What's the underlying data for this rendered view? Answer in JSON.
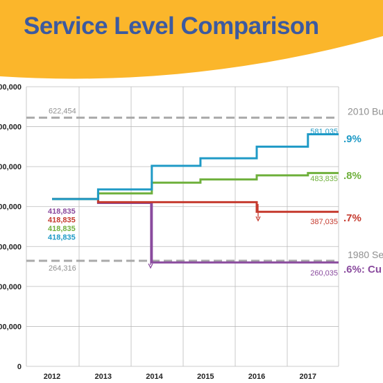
{
  "colors": {
    "banner": "#fbb62b",
    "title": "#3c5aa0",
    "grid": "#bbbbbb",
    "reference": "#a9a9a9",
    "reference_label": "#8f8f8f",
    "teal": "#1f9ac6",
    "green": "#6fb03c",
    "red": "#c53a2e",
    "purple": "#8a4b9e"
  },
  "chart_data": {
    "type": "line",
    "step": true,
    "title": "Service Level Comparison",
    "xlabel": "",
    "ylabel": "",
    "x_ticks": [
      "2012",
      "2013",
      "2014",
      "2015",
      "2016",
      "2017"
    ],
    "y_ticks": [
      {
        "value": 0,
        "label": "0"
      },
      {
        "value": 100000,
        "label": "00,000"
      },
      {
        "value": 200000,
        "label": "00,000"
      },
      {
        "value": 300000,
        "label": "00,000"
      },
      {
        "value": 400000,
        "label": "00,000"
      },
      {
        "value": 500000,
        "label": "00,000"
      },
      {
        "value": 600000,
        "label": "00,000"
      },
      {
        "value": 700000,
        "label": "00,000"
      }
    ],
    "ylim": [
      0,
      700000
    ],
    "xlim": [
      2012,
      2017.6
    ],
    "grid": true,
    "reference_lines": [
      {
        "name": "2010 Bu",
        "value": 622454,
        "value_label": "622,454"
      },
      {
        "name": "1980 Ser",
        "value": 264316,
        "value_label": "264,316"
      }
    ],
    "start_labels": [
      "418,835",
      "418,835",
      "418,835",
      "418,835"
    ],
    "series": [
      {
        "name": ".9%",
        "color": "teal",
        "end_label": "581,035",
        "x": [
          2012,
          2012.9,
          2012.9,
          2013.95,
          2013.95,
          2014.9,
          2014.9,
          2016.0,
          2016.0,
          2017.0,
          2017.0,
          2017.6
        ],
        "y": [
          418835,
          418835,
          443000,
          443000,
          502000,
          502000,
          521000,
          521000,
          550000,
          550000,
          581035,
          581035
        ]
      },
      {
        "name": ".8%",
        "color": "green",
        "end_label": "483,835",
        "x": [
          2012,
          2012.9,
          2012.9,
          2013.95,
          2013.95,
          2014.9,
          2014.9,
          2016.0,
          2016.0,
          2017.0,
          2017.0,
          2017.6
        ],
        "y": [
          418835,
          418835,
          433000,
          433000,
          460000,
          460000,
          468000,
          468000,
          478000,
          478000,
          483835,
          483835
        ]
      },
      {
        "name": ".7%",
        "color": "red",
        "end_label": "387,035",
        "x": [
          2012,
          2012.9,
          2012.9,
          2016.0,
          2016.0,
          2017.6
        ],
        "y": [
          418835,
          418835,
          411000,
          411000,
          387035,
          387035
        ]
      },
      {
        "name": ".6%: Cu",
        "color": "purple",
        "end_label": "260,035",
        "x": [
          2012,
          2012.9,
          2012.9,
          2013.95,
          2013.95,
          2017.6
        ],
        "y": [
          418835,
          418835,
          409000,
          409000,
          260035,
          260035
        ]
      }
    ]
  }
}
